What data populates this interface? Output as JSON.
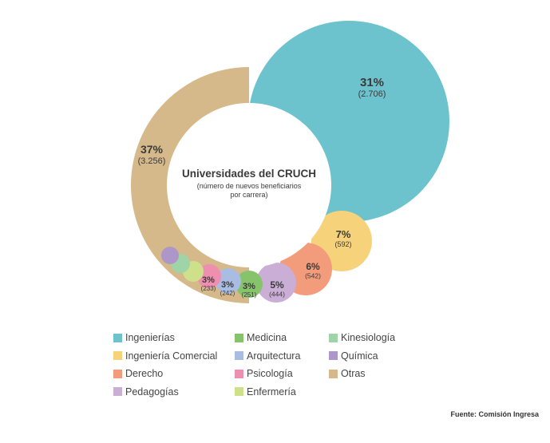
{
  "chart_data": {
    "type": "donut",
    "title": "Universidades del CRUCH",
    "subtitle_line1": "(número de nuevos beneficiarios",
    "subtitle_line2": "por carrera)",
    "slices": [
      {
        "name": "Ingenierías",
        "percent_label": "31%",
        "count_label": "(2.706)",
        "value": 2706,
        "color": "#6cc3cd"
      },
      {
        "name": "Ingeniería Comercial",
        "percent_label": "7%",
        "count_label": "(592)",
        "value": 592,
        "color": "#f6d27a"
      },
      {
        "name": "Derecho",
        "percent_label": "6%",
        "count_label": "(542)",
        "value": 542,
        "color": "#f39c7c"
      },
      {
        "name": "Pedagogías",
        "percent_label": "5%",
        "count_label": "(444)",
        "value": 444,
        "color": "#cbaed6"
      },
      {
        "name": "Medicina",
        "percent_label": "3%",
        "count_label": "(251)",
        "value": 251,
        "color": "#86c36b"
      },
      {
        "name": "Arquitectura",
        "percent_label": "3%",
        "count_label": "(242)",
        "value": 242,
        "color": "#a9bde3"
      },
      {
        "name": "Psicología",
        "percent_label": "3%",
        "count_label": "(233)",
        "value": 233,
        "color": "#ef8fb0"
      },
      {
        "name": "Enfermería",
        "percent_label": "",
        "count_label": "",
        "value": 200,
        "color": "#cfe08a"
      },
      {
        "name": "Kinesiología",
        "percent_label": "",
        "count_label": "",
        "value": 190,
        "color": "#9fd3a8"
      },
      {
        "name": "Química",
        "percent_label": "",
        "count_label": "",
        "value": 180,
        "color": "#ae96c9"
      },
      {
        "name": "Otras",
        "percent_label": "37%",
        "count_label": "(3.256)",
        "value": 3256,
        "color": "#d5b98a"
      }
    ],
    "legend_placement": "bottom",
    "legend_order": [
      "Ingenierías",
      "Medicina",
      "Kinesiología",
      "Ingeniería Comercial",
      "Arquitectura",
      "Química",
      "Derecho",
      "Psicología",
      "Otras",
      "Pedagogías",
      "Enfermería"
    ]
  },
  "footer": {
    "source": "Fuente: Comisión Ingresa"
  }
}
